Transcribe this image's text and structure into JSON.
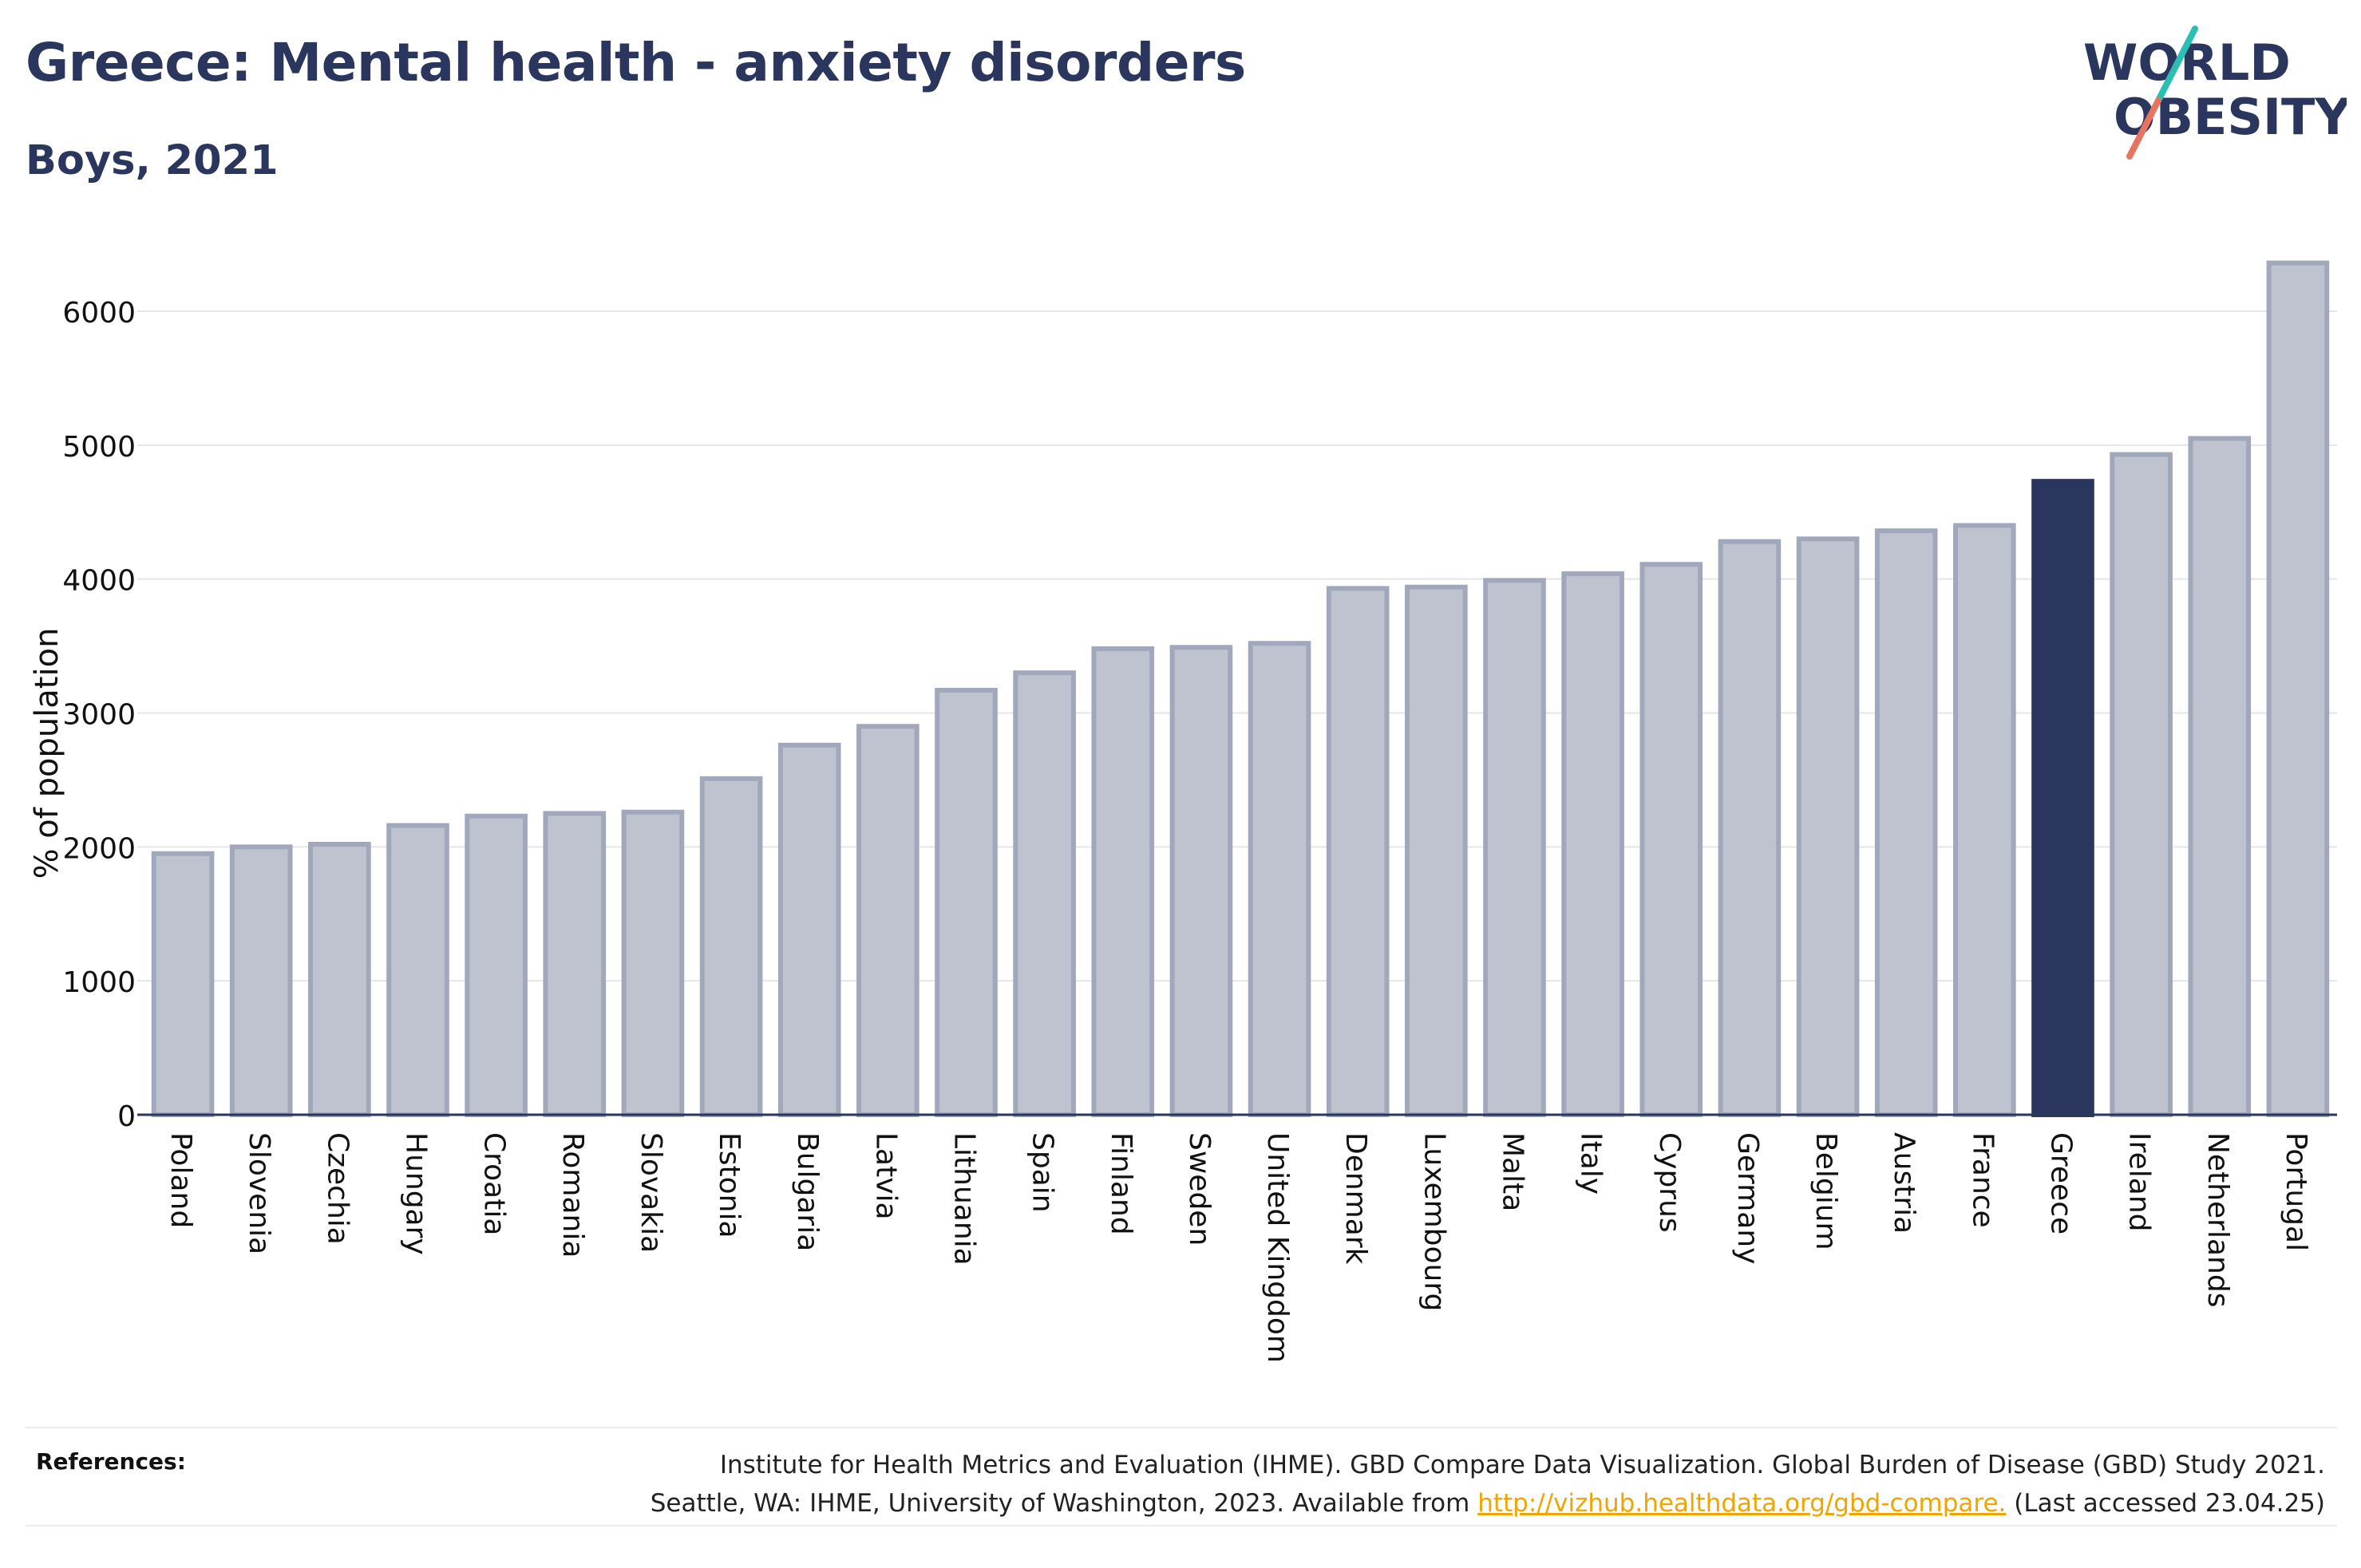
{
  "header": {
    "title": "Greece: Mental health - anxiety disorders",
    "subtitle": "Boys, 2021"
  },
  "logo": {
    "line1": "WORLD",
    "line2": "OBESITY",
    "colors": {
      "text": "#2b365f",
      "slash_top": "#2bbfb3",
      "slash_bottom": "#e8735f"
    }
  },
  "colors": {
    "bar": "#bfc3d0",
    "bar_stroke": "#a2a8bc",
    "highlight": "#2b365f",
    "grid": "#e6e6ea",
    "axis": "#2b365f"
  },
  "chart_data": {
    "type": "bar",
    "title": "Greece: Mental health - anxiety disorders",
    "subtitle": "Boys, 2021",
    "ylabel": "% of population",
    "xlabel": "",
    "ylim": [
      0,
      6400
    ],
    "yticks": [
      0,
      1000,
      2000,
      3000,
      4000,
      5000,
      6000
    ],
    "grid": true,
    "highlight": "Greece",
    "categories": [
      "Poland",
      "Slovenia",
      "Czechia",
      "Hungary",
      "Croatia",
      "Romania",
      "Slovakia",
      "Estonia",
      "Bulgaria",
      "Latvia",
      "Lithuania",
      "Spain",
      "Finland",
      "Sweden",
      "United Kingdom",
      "Denmark",
      "Luxembourg",
      "Malta",
      "Italy",
      "Cyprus",
      "Germany",
      "Belgium",
      "Austria",
      "France",
      "Greece",
      "Ireland",
      "Netherlands",
      "Portugal"
    ],
    "values": [
      1950,
      2000,
      2020,
      2160,
      2230,
      2250,
      2260,
      2510,
      2760,
      2900,
      3170,
      3300,
      3480,
      3490,
      3520,
      3930,
      3940,
      3990,
      4040,
      4110,
      4280,
      4300,
      4360,
      4400,
      4730,
      4930,
      5050,
      6360
    ]
  },
  "references": {
    "label": "References:",
    "line1": "Institute for Health Metrics and Evaluation (IHME). GBD Compare Data Visualization. Global Burden of Disease (GBD) Study 2021.",
    "line2_prefix": "Seattle, WA: IHME, University of Washington, 2023. Available from ",
    "link": "http://vizhub.healthdata.org/gbd-compare.",
    "line2_suffix": " (Last accessed 23.04.25)"
  }
}
